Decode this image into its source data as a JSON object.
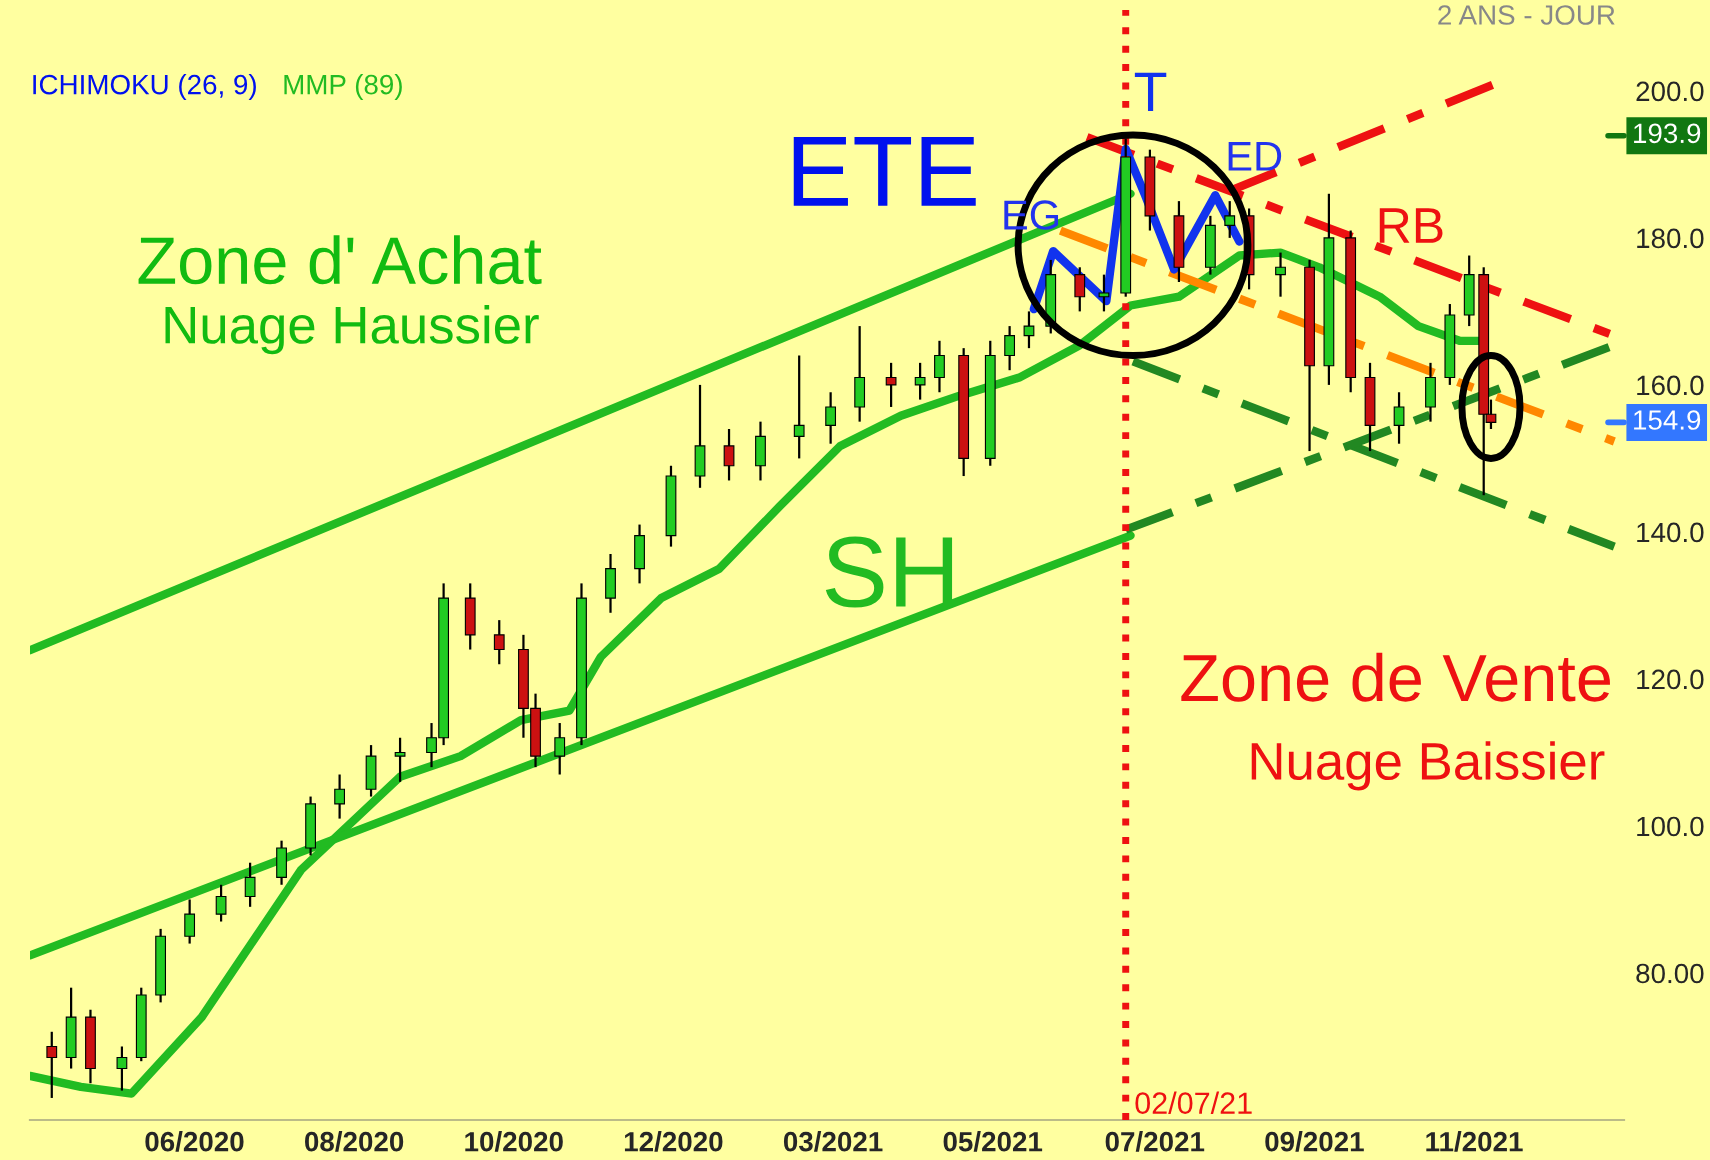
{
  "chart_data": {
    "type": "candlestick",
    "x": [
      "2020-04-14",
      "2020-04-22",
      "2020-04-30",
      "2020-05-13",
      "2020-05-21",
      "2020-05-29",
      "2020-06-10",
      "2020-06-23",
      "2020-07-05",
      "2020-07-18",
      "2020-07-30",
      "2020-08-11",
      "2020-08-24",
      "2020-09-05",
      "2020-09-18",
      "2020-09-23",
      "2020-10-04",
      "2020-10-16",
      "2020-10-26",
      "2020-10-31",
      "2020-11-10",
      "2020-11-19",
      "2020-12-01",
      "2020-12-13",
      "2020-12-26",
      "2021-01-07",
      "2021-01-19",
      "2021-02-01",
      "2021-02-17",
      "2021-03-02",
      "2021-03-14",
      "2021-03-27",
      "2021-04-08",
      "2021-04-16",
      "2021-04-26",
      "2021-05-07",
      "2021-05-15",
      "2021-05-23",
      "2021-06-01",
      "2021-06-13",
      "2021-06-23",
      "2021-07-02",
      "2021-07-12",
      "2021-07-24",
      "2021-08-06",
      "2021-08-14",
      "2021-08-22",
      "2021-09-04",
      "2021-09-16",
      "2021-09-24",
      "2021-10-03",
      "2021-10-11",
      "2021-10-23",
      "2021-11-05",
      "2021-11-13",
      "2021-11-21",
      "2021-11-27",
      "2021-11-30"
    ],
    "ohlc": [
      [
        70,
        72,
        63,
        68.5
      ],
      [
        68.5,
        78,
        67,
        74
      ],
      [
        74,
        75,
        65,
        67
      ],
      [
        67,
        70,
        64,
        68.5
      ],
      [
        68.5,
        78,
        68,
        77
      ],
      [
        77,
        86,
        76,
        85
      ],
      [
        85,
        90,
        84,
        88
      ],
      [
        88,
        92,
        87,
        90.4
      ],
      [
        90.4,
        95,
        89,
        93
      ],
      [
        93,
        98,
        92,
        97
      ],
      [
        97,
        104,
        96,
        103
      ],
      [
        103,
        107,
        101,
        105
      ],
      [
        105,
        111,
        104,
        109.5
      ],
      [
        109.5,
        112,
        106,
        110
      ],
      [
        110,
        114,
        108,
        112
      ],
      [
        112,
        133,
        111,
        131
      ],
      [
        131,
        133,
        124,
        126
      ],
      [
        126,
        128,
        122,
        124
      ],
      [
        124,
        126,
        112,
        116
      ],
      [
        116,
        118,
        108,
        109.5
      ],
      [
        109.5,
        114,
        107,
        112
      ],
      [
        112,
        133,
        111,
        131
      ],
      [
        131,
        137,
        129,
        135
      ],
      [
        135,
        141,
        133,
        139.5
      ],
      [
        139.5,
        149,
        138,
        147.6
      ],
      [
        147.6,
        160,
        146,
        151.7
      ],
      [
        151.7,
        154,
        147,
        149
      ],
      [
        149,
        155,
        147,
        153
      ],
      [
        153,
        164,
        150,
        154.5
      ],
      [
        154.5,
        159,
        152,
        157
      ],
      [
        157,
        168,
        155,
        161
      ],
      [
        161,
        163,
        157,
        160
      ],
      [
        160,
        163,
        158,
        161
      ],
      [
        161,
        166,
        159,
        164
      ],
      [
        164,
        165,
        147.6,
        150
      ],
      [
        150,
        166,
        149,
        164
      ],
      [
        164,
        168,
        162,
        166.7
      ],
      [
        166.7,
        170,
        165,
        168
      ],
      [
        168,
        177,
        167,
        175
      ],
      [
        175,
        176,
        170,
        172
      ],
      [
        172,
        175,
        170,
        172.5
      ],
      [
        172.5,
        193.5,
        172,
        191
      ],
      [
        191,
        192,
        181,
        183
      ],
      [
        183,
        185,
        174,
        176
      ],
      [
        176,
        183,
        175,
        181.7
      ],
      [
        181.7,
        185,
        180,
        183
      ],
      [
        183,
        184,
        173,
        175
      ],
      [
        175,
        178,
        172,
        176
      ],
      [
        176,
        177,
        151,
        162.6
      ],
      [
        162.6,
        186,
        160,
        180
      ],
      [
        180,
        181,
        159,
        161
      ],
      [
        161,
        163,
        151,
        154.5
      ],
      [
        154.5,
        159,
        152,
        157
      ],
      [
        157,
        163,
        155,
        161
      ],
      [
        161,
        171,
        160,
        169.5
      ],
      [
        169.5,
        177.6,
        168,
        175
      ],
      [
        175,
        176,
        145,
        156
      ],
      [
        156,
        158,
        154,
        154.9
      ]
    ],
    "series": [
      {
        "name": "MMP (89)",
        "type": "line",
        "color": "#22bb22",
        "line_style": "solid",
        "x": [
          "2020-04-05",
          "2020-04-26",
          "2020-05-17",
          "2020-06-15",
          "2020-07-26",
          "2020-09-05",
          "2020-09-30",
          "2020-10-25",
          "2020-11-14",
          "2020-11-27",
          "2020-12-22",
          "2021-01-15",
          "2021-02-09",
          "2021-03-06",
          "2021-03-31",
          "2021-04-24",
          "2021-05-19",
          "2021-06-13",
          "2021-07-04",
          "2021-07-24",
          "2021-08-18",
          "2021-09-04",
          "2021-09-20",
          "2021-10-15",
          "2021-10-31",
          "2021-11-17",
          "2021-11-25"
        ],
        "values": [
          66,
          64.5,
          63.6,
          74,
          94,
          106.7,
          109.5,
          114.4,
          115.7,
          123,
          131,
          135,
          143.5,
          151.7,
          155.8,
          158.5,
          161,
          165.4,
          170.8,
          172,
          177.6,
          178,
          176,
          172,
          168,
          166,
          166
        ]
      },
      {
        "type": "line",
        "color": "#22bb22",
        "line_style": "solid",
        "x": [
          "2020-04-05",
          "2021-07-04"
        ],
        "values": [
          123.9,
          186
        ]
      },
      {
        "type": "line",
        "color": "#22bb22",
        "line_style": "solid",
        "x": [
          "2020-04-05",
          "2021-07-04"
        ],
        "values": [
          82.4,
          139.5
        ]
      },
      {
        "type": "line",
        "color": "#ee1111",
        "line_style": "dashed",
        "x": [
          "2021-06-16",
          "2022-01-20"
        ],
        "values": [
          193.7,
          166.7
        ]
      },
      {
        "type": "line",
        "color": "#228822",
        "line_style": "dashed",
        "x": [
          "2021-07-05",
          "2022-01-20"
        ],
        "values": [
          163.2,
          138
        ]
      },
      {
        "type": "line",
        "color": "#228822",
        "line_style": "dashed",
        "x": [
          "2021-07-02",
          "2022-01-20"
        ],
        "values": [
          140.3,
          165.4
        ]
      },
      {
        "type": "line",
        "color": "#ff8800",
        "line_style": "dashed",
        "x": [
          "2021-06-05",
          "2022-01-20"
        ],
        "values": [
          181,
          152.3
        ]
      },
      {
        "type": "line",
        "color": "#ee1111",
        "line_style": "dashed",
        "x": [
          "2021-08-14",
          "2021-12-05"
        ],
        "values": [
          186.4,
          201.4
        ]
      },
      {
        "type": "line",
        "color": "#1133ee",
        "line_style": "solid",
        "x": [
          "2021-05-25",
          "2021-06-02",
          "2021-06-24",
          "2021-07-02",
          "2021-07-10",
          "2021-07-22",
          "2021-08-08",
          "2021-08-18"
        ],
        "values": [
          170.3,
          178.2,
          171.4,
          192.1,
          185.8,
          175.7,
          185.8,
          179.5
        ]
      }
    ],
    "xlim": [
      "2020-04-05",
      "2022-01-24"
    ],
    "xticks": [
      {
        "value": "2020-06-12",
        "label": "06/2020"
      },
      {
        "value": "2020-08-17",
        "label": "08/2020"
      },
      {
        "value": "2020-10-22",
        "label": "10/2020"
      },
      {
        "value": "2020-12-27",
        "label": "12/2020"
      },
      {
        "value": "2021-03-03",
        "label": "03/2021"
      },
      {
        "value": "2021-05-08",
        "label": "05/2021"
      },
      {
        "value": "2021-07-14",
        "label": "07/2021"
      },
      {
        "value": "2021-09-18",
        "label": "09/2021"
      },
      {
        "value": "2021-11-23",
        "label": "11/2021"
      }
    ],
    "ylim": [
      60,
      211
    ],
    "yticks": [
      {
        "value": 80,
        "label": "80.00"
      },
      {
        "value": 100,
        "label": "100.0"
      },
      {
        "value": 120,
        "label": "120.0"
      },
      {
        "value": 140,
        "label": "140.0"
      },
      {
        "value": 160,
        "label": "160.0"
      },
      {
        "value": 180,
        "label": "180.0"
      },
      {
        "value": 200,
        "label": "200.0"
      }
    ],
    "ref_lines": [
      {
        "axis": "x",
        "value": "2021-07-02",
        "label": "02/07/21",
        "color": "#ee1111",
        "line_style": "dotted"
      },
      {
        "axis": "y",
        "value": 193.9,
        "label": "193.9",
        "color": "#117711"
      },
      {
        "axis": "y",
        "value": 154.9,
        "label": "154.9",
        "color": "#3377ff"
      }
    ],
    "annotations": [
      "ETE",
      "EG",
      "T",
      "ED",
      "RB",
      "SH",
      "Zone d' Achat",
      "Nuage Haussier",
      "Zone de Vente",
      "Nuage Baissier",
      "ICHIMOKU (26, 9)",
      "2 ANS - JOUR"
    ],
    "grid": false
  }
}
